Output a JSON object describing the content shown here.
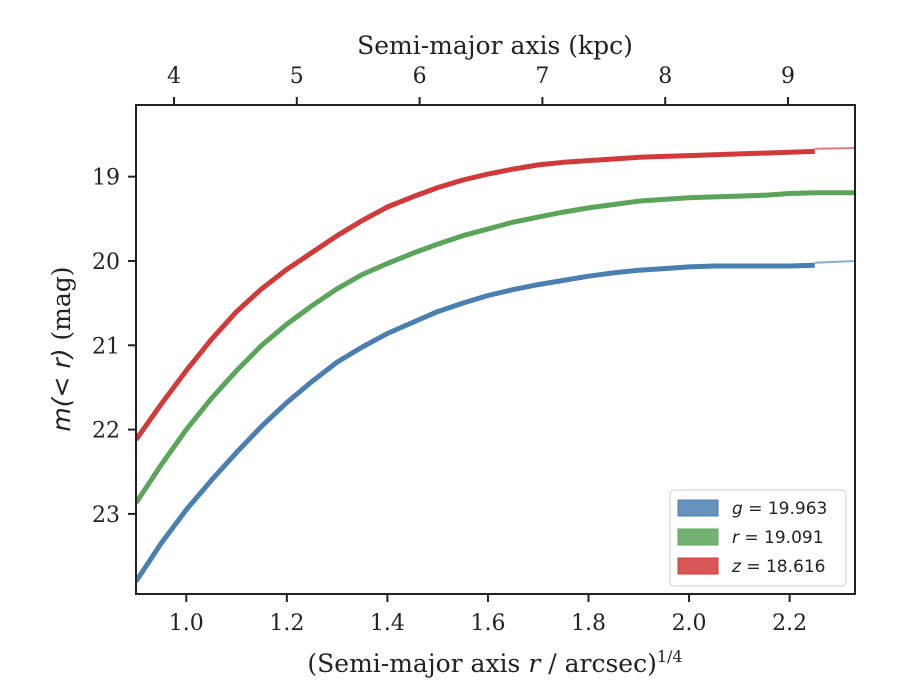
{
  "chart_data": {
    "type": "line",
    "xlabel_prefix": "(Semi-major axis ",
    "xlabel_var": "r",
    "xlabel_suffix": " / arcsec)",
    "xlabel_sup": "1/4",
    "ylabel_prefix": "m(< r)",
    "ylabel_suffix": " (mag)",
    "top_xlabel": "Semi-major axis (kpc)",
    "xlim": [
      0.9,
      2.33
    ],
    "ylim": [
      23.95,
      18.15
    ],
    "y_inverted": true,
    "x_ticks": [
      1.0,
      1.2,
      1.4,
      1.6,
      1.8,
      2.0,
      2.2
    ],
    "x_tick_labels": [
      "1.0",
      "1.2",
      "1.4",
      "1.6",
      "1.8",
      "2.0",
      "2.2"
    ],
    "y_ticks": [
      19,
      20,
      21,
      22,
      23
    ],
    "y_tick_labels": [
      "19",
      "20",
      "21",
      "22",
      "23"
    ],
    "top_ticks": [
      4,
      5,
      6,
      7,
      8,
      9
    ],
    "top_tick_labels": [
      "4",
      "5",
      "6",
      "7",
      "8",
      "9"
    ],
    "legend_position": "bottom-right",
    "series": [
      {
        "name": "g = 19.963",
        "legend_var": "g",
        "legend_value": "= 19.963",
        "color": "#4a7fb0",
        "x": [
          0.9,
          0.95,
          1.0,
          1.05,
          1.1,
          1.15,
          1.2,
          1.25,
          1.3,
          1.35,
          1.4,
          1.45,
          1.5,
          1.55,
          1.6,
          1.65,
          1.7,
          1.75,
          1.8,
          1.85,
          1.9,
          1.95,
          2.0,
          2.05,
          2.1,
          2.15,
          2.2,
          2.25
        ],
        "y": [
          23.8,
          23.35,
          22.95,
          22.6,
          22.27,
          21.96,
          21.68,
          21.43,
          21.2,
          21.02,
          20.86,
          20.73,
          20.6,
          20.5,
          20.41,
          20.34,
          20.28,
          20.23,
          20.18,
          20.14,
          20.11,
          20.09,
          20.07,
          20.06,
          20.06,
          20.06,
          20.06,
          20.05
        ],
        "ext_x": [
          2.25,
          2.33
        ],
        "ext_y": [
          20.02,
          20.0
        ]
      },
      {
        "name": "r = 19.091",
        "legend_var": "r",
        "legend_value": "= 19.091",
        "color": "#5aa55a",
        "x": [
          0.9,
          0.95,
          1.0,
          1.05,
          1.1,
          1.15,
          1.2,
          1.25,
          1.3,
          1.35,
          1.4,
          1.45,
          1.5,
          1.55,
          1.6,
          1.65,
          1.7,
          1.75,
          1.8,
          1.85,
          1.9,
          1.95,
          2.0,
          2.05,
          2.1,
          2.15,
          2.2,
          2.25,
          2.33
        ],
        "y": [
          22.87,
          22.42,
          22.0,
          21.63,
          21.3,
          21.0,
          20.75,
          20.53,
          20.33,
          20.16,
          20.03,
          19.91,
          19.8,
          19.7,
          19.62,
          19.54,
          19.48,
          19.42,
          19.37,
          19.33,
          19.29,
          19.27,
          19.25,
          19.24,
          19.23,
          19.22,
          19.2,
          19.19,
          19.19
        ]
      },
      {
        "name": "z = 18.616",
        "legend_var": "z",
        "legend_value": "= 18.616",
        "color": "#d03a3a",
        "x": [
          0.9,
          0.95,
          1.0,
          1.05,
          1.1,
          1.15,
          1.2,
          1.25,
          1.3,
          1.35,
          1.4,
          1.45,
          1.5,
          1.55,
          1.6,
          1.65,
          1.7,
          1.75,
          1.8,
          1.85,
          1.9,
          1.95,
          2.0,
          2.05,
          2.1,
          2.15,
          2.2,
          2.25
        ],
        "y": [
          22.12,
          21.7,
          21.3,
          20.93,
          20.6,
          20.33,
          20.1,
          19.9,
          19.7,
          19.52,
          19.36,
          19.24,
          19.13,
          19.04,
          18.97,
          18.91,
          18.86,
          18.83,
          18.81,
          18.79,
          18.77,
          18.76,
          18.75,
          18.74,
          18.73,
          18.72,
          18.71,
          18.7
        ],
        "ext_x": [
          2.25,
          2.33
        ],
        "ext_y": [
          18.67,
          18.66
        ]
      }
    ]
  }
}
